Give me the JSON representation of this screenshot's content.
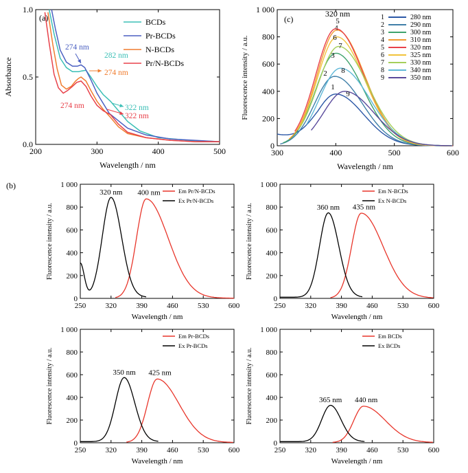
{
  "chart_data": [
    {
      "panel": "(a)",
      "type": "line",
      "xlabel": "Wavelength / nm",
      "ylabel": "Absorbance",
      "xlim": [
        200,
        500
      ],
      "ylim": [
        0,
        1.0
      ],
      "xticks": [
        "200",
        "300",
        "400",
        "500"
      ],
      "yticks": [
        "0.0",
        "0.5",
        "1.0"
      ],
      "legend_position": "top-right",
      "series": [
        {
          "name": "BCDs",
          "color": "#3bbfb6",
          "x": [
            222,
            230,
            240,
            250,
            260,
            270,
            275,
            282,
            290,
            300,
            310,
            322,
            335,
            350,
            370,
            400,
            450,
            500
          ],
          "y": [
            1.0,
            0.82,
            0.64,
            0.57,
            0.54,
            0.54,
            0.545,
            0.55,
            0.5,
            0.43,
            0.37,
            0.32,
            0.25,
            0.17,
            0.1,
            0.05,
            0.03,
            0.02
          ]
        },
        {
          "name": "Pr-BCDs",
          "color": "#4a5fc1",
          "x": [
            226,
            232,
            240,
            250,
            260,
            268,
            274,
            280,
            290,
            300,
            320,
            350,
            380,
            420,
            460,
            500
          ],
          "y": [
            1.0,
            0.86,
            0.7,
            0.61,
            0.58,
            0.58,
            0.59,
            0.57,
            0.48,
            0.38,
            0.23,
            0.12,
            0.07,
            0.04,
            0.03,
            0.02
          ]
        },
        {
          "name": "N-BCDs",
          "color": "#f07c2e",
          "x": [
            220,
            228,
            235,
            242,
            250,
            258,
            265,
            270,
            274,
            282,
            290,
            300,
            310,
            322,
            335,
            350,
            380,
            420,
            460,
            500
          ],
          "y": [
            0.98,
            0.74,
            0.56,
            0.44,
            0.41,
            0.43,
            0.47,
            0.49,
            0.5,
            0.47,
            0.4,
            0.32,
            0.26,
            0.2,
            0.13,
            0.08,
            0.05,
            0.03,
            0.02,
            0.02
          ]
        },
        {
          "name": "Pr/N-BCDs",
          "color": "#e8414a",
          "x": [
            215,
            222,
            230,
            237,
            245,
            252,
            260,
            267,
            274,
            282,
            290,
            300,
            310,
            322,
            335,
            350,
            380,
            420,
            460,
            500
          ],
          "y": [
            0.98,
            0.75,
            0.52,
            0.42,
            0.38,
            0.4,
            0.43,
            0.46,
            0.47,
            0.43,
            0.36,
            0.29,
            0.25,
            0.22,
            0.15,
            0.09,
            0.05,
            0.03,
            0.02,
            0.02
          ]
        }
      ],
      "annotations": [
        {
          "text": "274 nm",
          "color": "#4a5fc1"
        },
        {
          "text": "282 nm",
          "color": "#3bbfb6"
        },
        {
          "text": "274 nm",
          "color": "#f07c2e"
        },
        {
          "text": "274 nm",
          "color": "#e8414a"
        },
        {
          "text": "322 nm",
          "color": "#3bbfb6"
        },
        {
          "text": "322 nm",
          "color": "#e8414a"
        }
      ]
    },
    {
      "panel": "(c)",
      "type": "line",
      "xlabel": "Wavelength / nm",
      "ylabel": "Fluorescence intensity / a.u.",
      "xlim": [
        300,
        600
      ],
      "ylim": [
        0,
        1000
      ],
      "xticks": [
        "300",
        "400",
        "500",
        "600"
      ],
      "yticks": [
        "0",
        "200",
        "400",
        "600",
        "800",
        "1 000"
      ],
      "legend_position": "top-right",
      "peak_label": "320 nm",
      "series": [
        {
          "name": "1",
          "label": "280 nm",
          "color": "#2b57a6",
          "peak_x": 400,
          "peak_y": 380,
          "sigma": 38,
          "start": 300
        },
        {
          "name": "2",
          "label": "290 nm",
          "color": "#3f7fa8",
          "peak_x": 398,
          "peak_y": 510,
          "sigma": 38,
          "start": 305
        },
        {
          "name": "3",
          "label": "300 nm",
          "color": "#3ea36c",
          "peak_x": 400,
          "peak_y": 680,
          "sigma": 38,
          "start": 310
        },
        {
          "name": "4",
          "label": "310 nm",
          "color": "#f29a2e",
          "peak_x": 402,
          "peak_y": 850,
          "sigma": 38,
          "start": 320
        },
        {
          "name": "5",
          "label": "320 nm",
          "color": "#e8414a",
          "peak_x": 400,
          "peak_y": 860,
          "sigma": 38,
          "start": 330
        },
        {
          "name": "6",
          "label": "325 nm",
          "color": "#f2c33a",
          "peak_x": 402,
          "peak_y": 800,
          "sigma": 38,
          "start": 335
        },
        {
          "name": "7",
          "label": "330 nm",
          "color": "#a5cf5a",
          "peak_x": 405,
          "peak_y": 730,
          "sigma": 40,
          "start": 340
        },
        {
          "name": "8",
          "label": "340 nm",
          "color": "#5fb8d8",
          "peak_x": 408,
          "peak_y": 570,
          "sigma": 40,
          "start": 350
        },
        {
          "name": "9",
          "label": "350 nm",
          "color": "#5a4a9c",
          "peak_x": 415,
          "peak_y": 400,
          "sigma": 40,
          "start": 358
        }
      ]
    },
    {
      "panel": "(b)",
      "type": "line",
      "xlabel": "Wavelength / nm",
      "ylabel": "Fluorescence intensity / a.u.",
      "xlim": [
        250,
        600
      ],
      "ylim": [
        0,
        1000
      ],
      "xticks": [
        "250",
        "320",
        "390",
        "460",
        "530",
        "600"
      ],
      "yticks": [
        "0",
        "200",
        "400",
        "600",
        "800",
        "1 000"
      ],
      "legend_position": "top-right",
      "series": [
        {
          "name": "Em Pr/N-BCDs",
          "color": "#e8352a",
          "peak_x": 400,
          "peak_y": 870,
          "peak_label": "400 nm"
        },
        {
          "name": "Ex Pr/N-BCDs",
          "color": "#000000",
          "peak_x": 320,
          "peak_y": 875,
          "peak_label": "320 nm"
        }
      ]
    },
    {
      "panel": "",
      "type": "line",
      "xlabel": "Wavelength / nm",
      "ylabel": "Fluorescence intensity / a.u.",
      "xlim": [
        250,
        600
      ],
      "ylim": [
        0,
        1000
      ],
      "xticks": [
        "250",
        "320",
        "390",
        "460",
        "530",
        "600"
      ],
      "yticks": [
        "0",
        "200",
        "400",
        "600",
        "800",
        "1 000"
      ],
      "legend_position": "top-right",
      "series": [
        {
          "name": "Em N-BCDs",
          "color": "#e8352a",
          "peak_x": 435,
          "peak_y": 745,
          "peak_label": "435 nm"
        },
        {
          "name": "Ex N-BCDs",
          "color": "#000000",
          "peak_x": 360,
          "peak_y": 740,
          "peak_label": "360 nm"
        }
      ]
    },
    {
      "panel": "",
      "type": "line",
      "xlabel": "Wavelength / nm",
      "ylabel": "Fluorescence intensity / a.u.",
      "xlim": [
        250,
        600
      ],
      "ylim": [
        0,
        1000
      ],
      "xticks": [
        "250",
        "320",
        "390",
        "460",
        "530",
        "600"
      ],
      "yticks": [
        "0",
        "200",
        "400",
        "600",
        "800",
        "1 000"
      ],
      "legend_position": "top-right",
      "series": [
        {
          "name": "Em Pr-BCDs",
          "color": "#e8352a",
          "peak_x": 425,
          "peak_y": 560,
          "peak_label": "425 nm"
        },
        {
          "name": "Ex Pr-BCDs",
          "color": "#000000",
          "peak_x": 350,
          "peak_y": 565,
          "peak_label": "350 nm"
        }
      ]
    },
    {
      "panel": "",
      "type": "line",
      "xlabel": "Wavelength / nm",
      "ylabel": "Fluorescence intensity / a.u.",
      "xlim": [
        250,
        600
      ],
      "ylim": [
        0,
        1000
      ],
      "xticks": [
        "250",
        "320",
        "390",
        "460",
        "530",
        "600"
      ],
      "yticks": [
        "0",
        "200",
        "400",
        "600",
        "800",
        "1 000"
      ],
      "legend_position": "top-right",
      "series": [
        {
          "name": "Em BCDs",
          "color": "#e8352a",
          "peak_x": 440,
          "peak_y": 320,
          "peak_label": "440 nm"
        },
        {
          "name": "Ex BCDs",
          "color": "#000000",
          "peak_x": 365,
          "peak_y": 320,
          "peak_label": "365 nm"
        }
      ]
    }
  ]
}
